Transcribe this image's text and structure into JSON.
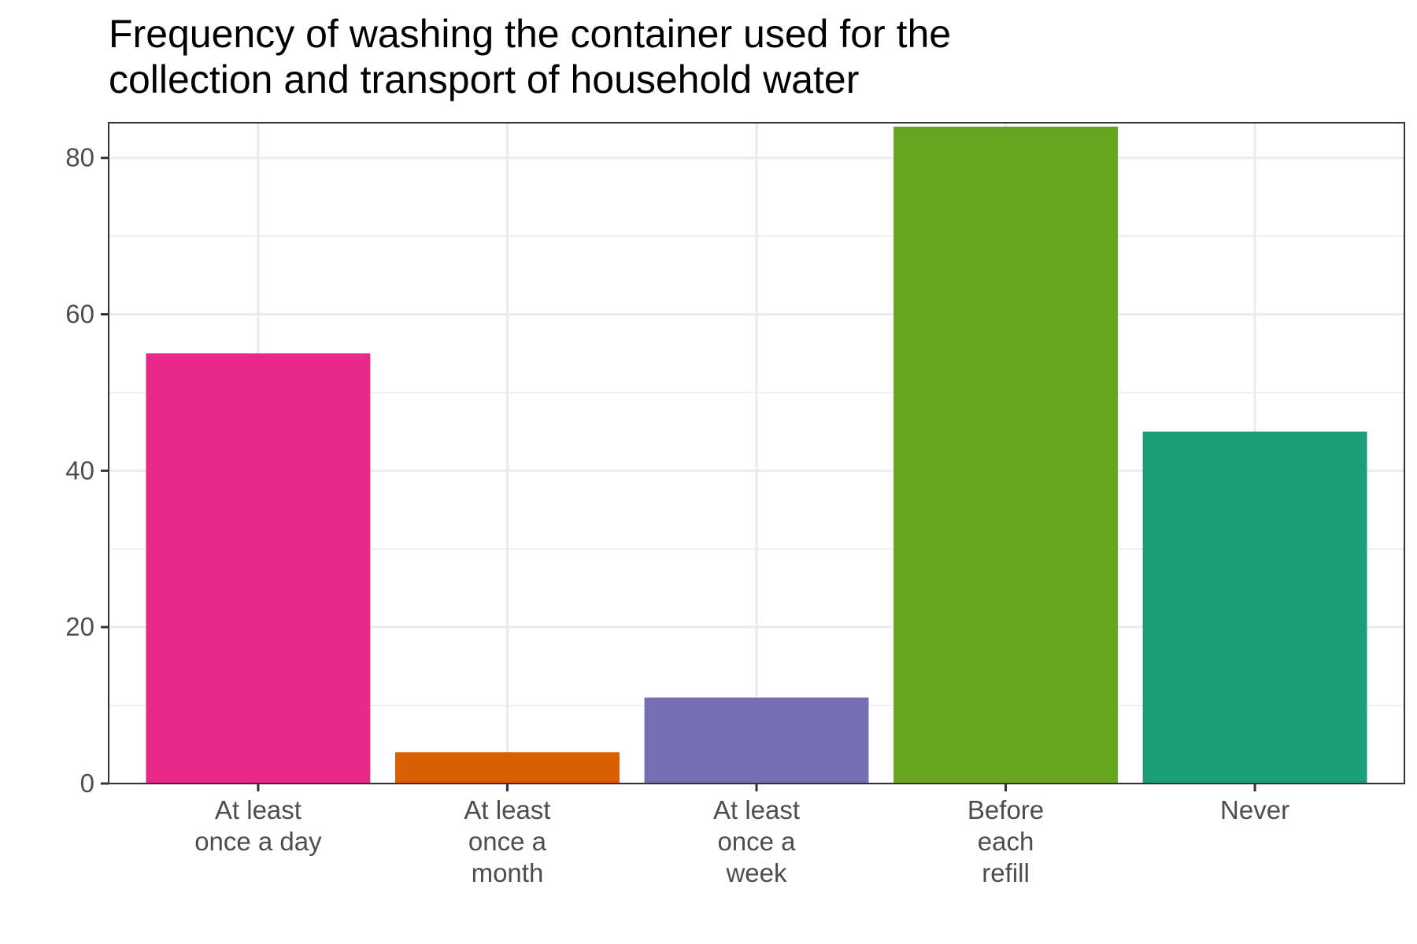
{
  "chart_data": {
    "type": "bar",
    "title_lines": [
      "Frequency of washing the container used for the",
      "collection and transport of household water"
    ],
    "xlabel": "",
    "ylabel": "",
    "categories": [
      [
        "At least",
        "once a day"
      ],
      [
        "At least",
        "once a",
        "month"
      ],
      [
        "At least",
        "once a",
        "week"
      ],
      [
        "Before",
        "each",
        "refill"
      ],
      [
        "Never"
      ]
    ],
    "values": [
      55,
      4,
      11,
      84,
      45
    ],
    "colors": [
      "#e7298a",
      "#d95f02",
      "#7570b3",
      "#66a61e",
      "#1b9e77"
    ],
    "y_ticks": [
      "0",
      "20",
      "40",
      "60",
      "80"
    ],
    "ylim": [
      0,
      84.5
    ],
    "grid": true,
    "legend": "none"
  }
}
